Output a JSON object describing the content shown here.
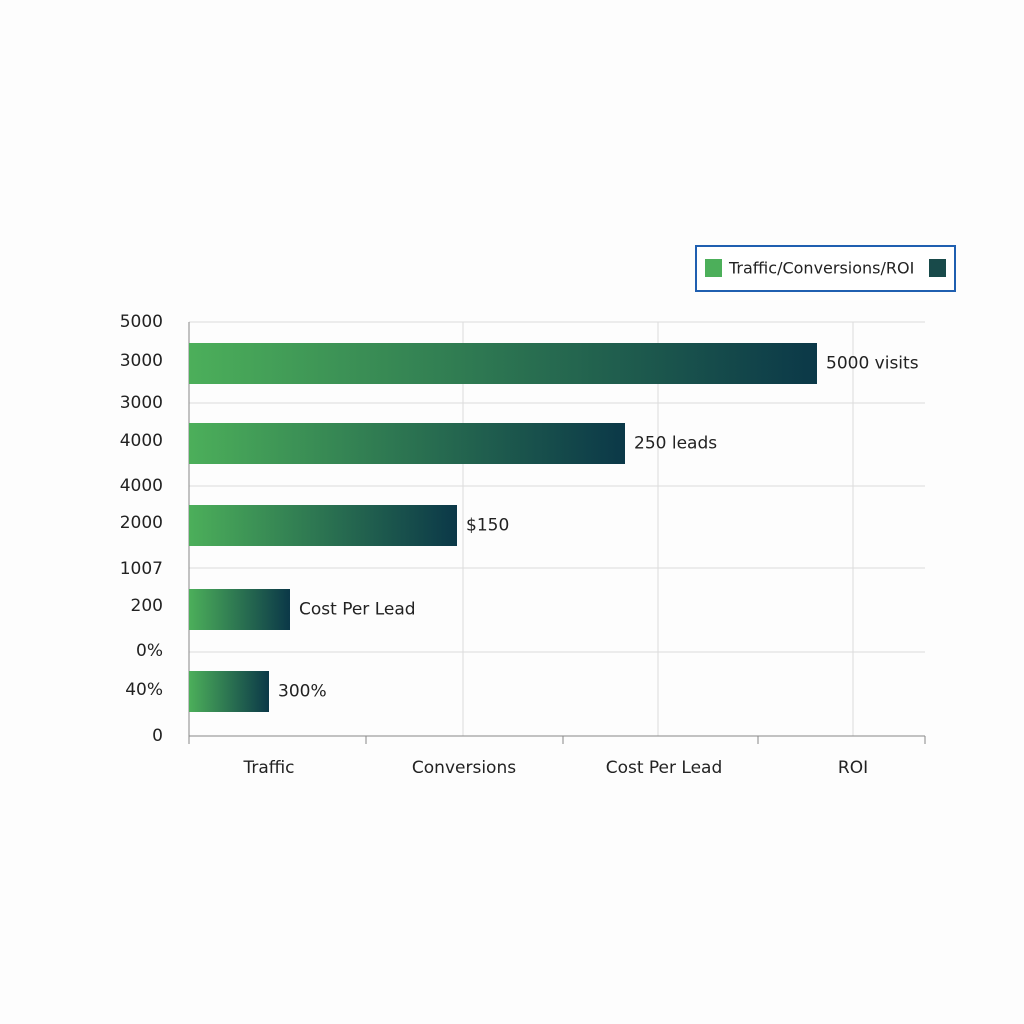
{
  "legend": {
    "label": "Traffic/Conversions/ROI"
  },
  "left_labels": [
    "5000",
    "3000",
    "3000",
    "4000",
    "4000",
    "2000",
    "1007",
    "200",
    "0%",
    "40%",
    "0"
  ],
  "bottom_labels": [
    "Traffic",
    "Conversions",
    "Cost Per Lead",
    "ROI"
  ],
  "bar_labels": [
    "5000 visits",
    "250 leads",
    "$150",
    "Cost Per Lead",
    "300%"
  ]
}
